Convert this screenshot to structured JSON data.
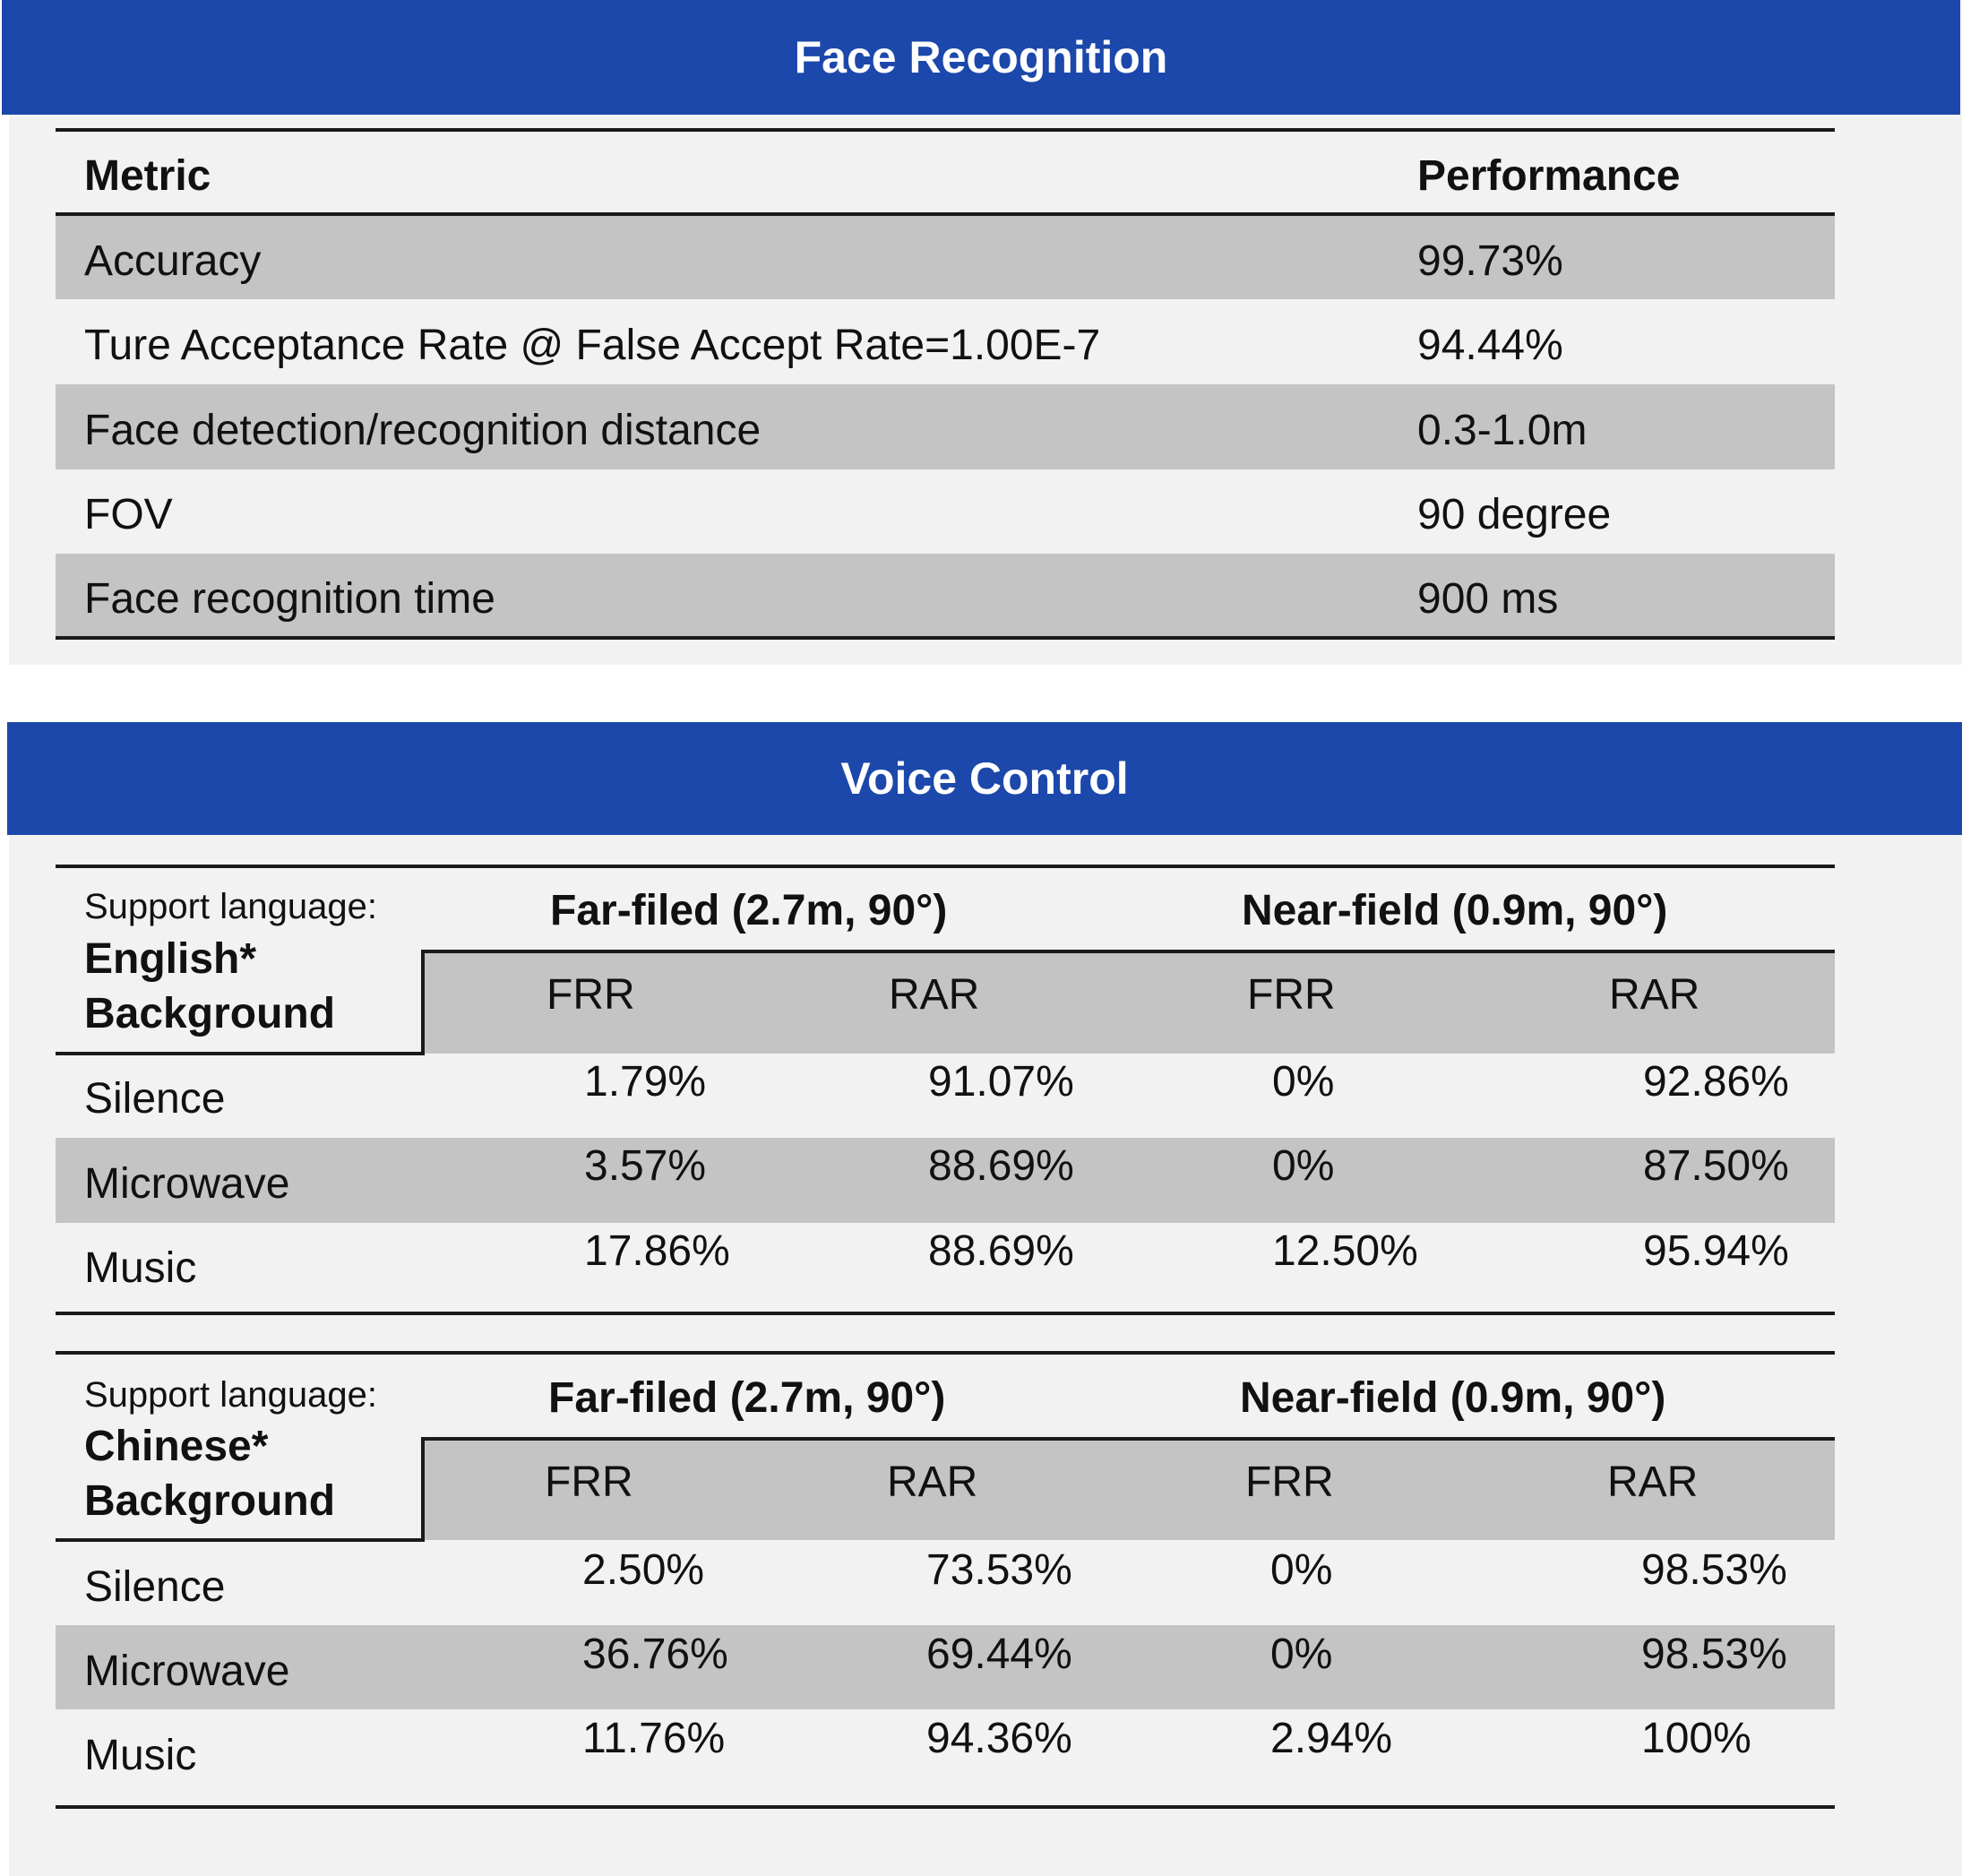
{
  "face": {
    "title": "Face Recognition",
    "header": {
      "metric": "Metric",
      "performance": "Performance"
    },
    "rows": [
      {
        "metric": "Accuracy",
        "value": "99.73%"
      },
      {
        "metric": "Ture Acceptance Rate @ False Accept Rate=1.00E-7",
        "value": "94.44%"
      },
      {
        "metric": "Face detection/recognition distance",
        "value": "0.3-1.0m"
      },
      {
        "metric": "FOV",
        "value": "90 degree"
      },
      {
        "metric": "Face recognition time",
        "value": "900 ms"
      }
    ]
  },
  "voice": {
    "title": "Voice Control",
    "tables": [
      {
        "support_label": "Support language:",
        "language": "English*",
        "background_label": "Background",
        "far_field": "Far-filed (2.7m, 90°)",
        "near_field": "Near-field (0.9m, 90°)",
        "subheaders": [
          "FRR",
          "RAR",
          "FRR",
          "RAR"
        ],
        "rows": [
          {
            "name": "Silence",
            "values": [
              "1.79%",
              "91.07%",
              "0%",
              "92.86%"
            ]
          },
          {
            "name": "Microwave",
            "values": [
              "3.57%",
              "88.69%",
              "0%",
              "87.50%"
            ]
          },
          {
            "name": "Music",
            "values": [
              "17.86%",
              "88.69%",
              "12.50%",
              "95.94%"
            ]
          }
        ]
      },
      {
        "support_label": "Support language:",
        "language": "Chinese*",
        "background_label": "Background",
        "far_field": "Far-filed (2.7m, 90°)",
        "near_field": "Near-field (0.9m, 90°)",
        "subheaders": [
          "FRR",
          "RAR",
          "FRR",
          "RAR"
        ],
        "rows": [
          {
            "name": "Silence",
            "values": [
              "2.50%",
              "73.53%",
              "0%",
              "98.53%"
            ]
          },
          {
            "name": "Microwave",
            "values": [
              "36.76%",
              "69.44%",
              "0%",
              "98.53%"
            ]
          },
          {
            "name": "Music",
            "values": [
              "11.76%",
              "94.36%",
              "2.94%",
              "100%"
            ]
          }
        ]
      }
    ]
  },
  "colors": {
    "banner": "#1b48aa",
    "panel": "#f2f2f2",
    "band": "#c4c4c4"
  }
}
